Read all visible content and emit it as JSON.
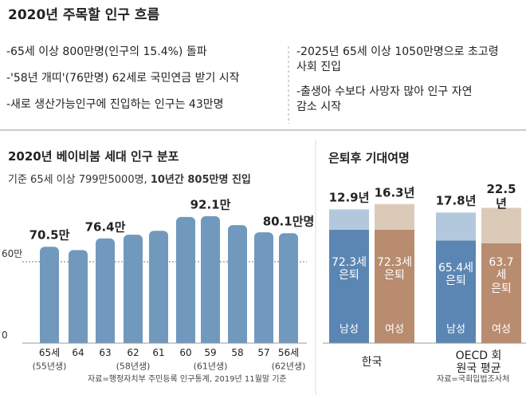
{
  "summary": {
    "title": "2020년 주목할 인구 흐름",
    "left_items": [
      "-65세 이상 800만명(인구의 15.4%) 돌파",
      "-'58년 개띠'(76만명) 62세로 국민연금 받기 시작",
      "-새로 생산가능인구에 진입하는 인구는 43만명"
    ],
    "right_items": [
      "-2025년 65세 이상 1050만명으로 초고령\n사회 진입",
      "-출생아 수보다 사망자 많아 인구 자연\n감소 시작"
    ]
  },
  "chart_data": [
    {
      "type": "bar",
      "title": "2020년 베이비붐 세대 인구 분포",
      "subtitle": "기준 65세 이상 799만5000명, ",
      "subtitle_emphasis": "10년간 805만명 진입",
      "categories": [
        "65세",
        "64",
        "63",
        "62",
        "61",
        "60",
        "59",
        "58",
        "57",
        "56세"
      ],
      "category_notes": [
        "(55년생)",
        null,
        null,
        "(58년생)",
        null,
        null,
        "(61년생)",
        null,
        null,
        "(62년생)"
      ],
      "values": [
        70.5,
        68.2,
        76.4,
        79,
        81.8,
        91.5,
        92.1,
        85.8,
        80.7,
        80.1
      ],
      "value_labels": [
        "70.5만",
        null,
        "76.4만",
        null,
        null,
        null,
        "92.1만",
        null,
        null,
        "80.1만명"
      ],
      "color": "#7199bd",
      "ylim": [
        0,
        100
      ],
      "yticks": [
        0,
        {
          "value": 60,
          "label": "60만"
        }
      ],
      "source": "자료=행정자치부 주민등록 인구통계, 2019년 11월말 기준"
    },
    {
      "type": "stacked_bar",
      "title": "은퇴후 기대여명",
      "categories": [
        "남성",
        "여성",
        "남성",
        "여성"
      ],
      "groups": [
        "한국",
        "OECD 회원국 평균"
      ],
      "series": [
        {
          "values": [
            72.3,
            72.3,
            65.4,
            63.7
          ],
          "value_labels": [
            "72.3세\n은퇴",
            "72.3세\n은퇴",
            "65.4세\n은퇴",
            "63.7세\n은퇴"
          ],
          "colors": [
            "#5b86b3",
            "#b98c6f",
            "#5b86b3",
            "#b98c6f"
          ]
        },
        {
          "values": [
            12.9,
            16.3,
            17.8,
            22.5
          ],
          "value_labels": [
            "12.9년",
            "16.3년",
            "17.8년",
            "22.5년"
          ],
          "colors": [
            "#b3c8dd",
            "#dccab9",
            "#b3c8dd",
            "#dccab9"
          ]
        }
      ],
      "ylim": [
        0,
        90
      ],
      "source": "자료=국회입법조사처"
    }
  ]
}
